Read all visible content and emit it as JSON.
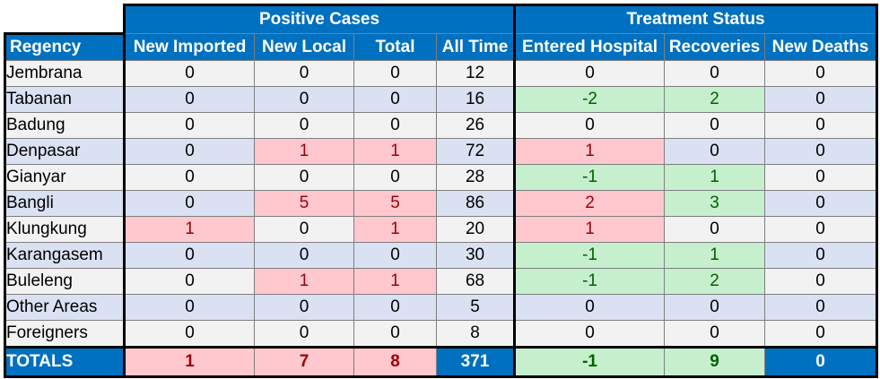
{
  "table": {
    "group_headers": {
      "positive": "Positive Cases",
      "treatment": "Treatment Status"
    },
    "columns": [
      "Regency",
      "New Imported",
      "New Local",
      "Total",
      "All Time",
      "Entered Hospital",
      "Recoveries",
      "New Deaths"
    ],
    "rows": [
      {
        "name": "Jembrana",
        "cells": [
          "0",
          "0",
          "0",
          "12",
          "0",
          "0",
          "0"
        ],
        "styles": [
          "",
          "",
          "",
          "",
          "",
          "",
          ""
        ]
      },
      {
        "name": "Tabanan",
        "cells": [
          "0",
          "0",
          "0",
          "16",
          "-2",
          "2",
          "0"
        ],
        "styles": [
          "",
          "",
          "",
          "",
          "green",
          "green",
          ""
        ]
      },
      {
        "name": "Badung",
        "cells": [
          "0",
          "0",
          "0",
          "26",
          "0",
          "0",
          "0"
        ],
        "styles": [
          "",
          "",
          "",
          "",
          "",
          "",
          ""
        ]
      },
      {
        "name": "Denpasar",
        "cells": [
          "0",
          "1",
          "1",
          "72",
          "1",
          "0",
          "0"
        ],
        "styles": [
          "",
          "red",
          "red",
          "",
          "red",
          "",
          ""
        ]
      },
      {
        "name": "Gianyar",
        "cells": [
          "0",
          "0",
          "0",
          "28",
          "-1",
          "1",
          "0"
        ],
        "styles": [
          "",
          "",
          "",
          "",
          "green",
          "green",
          ""
        ]
      },
      {
        "name": "Bangli",
        "cells": [
          "0",
          "5",
          "5",
          "86",
          "2",
          "3",
          "0"
        ],
        "styles": [
          "",
          "red",
          "red",
          "",
          "red",
          "green",
          ""
        ]
      },
      {
        "name": "Klungkung",
        "cells": [
          "1",
          "0",
          "1",
          "20",
          "1",
          "0",
          "0"
        ],
        "styles": [
          "red",
          "",
          "red",
          "",
          "red",
          "",
          ""
        ]
      },
      {
        "name": "Karangasem",
        "cells": [
          "0",
          "0",
          "0",
          "30",
          "-1",
          "1",
          "0"
        ],
        "styles": [
          "",
          "",
          "",
          "",
          "green",
          "green",
          ""
        ]
      },
      {
        "name": "Buleleng",
        "cells": [
          "0",
          "1",
          "1",
          "68",
          "-1",
          "2",
          "0"
        ],
        "styles": [
          "",
          "red",
          "red",
          "",
          "green",
          "green",
          ""
        ]
      },
      {
        "name": "Other Areas",
        "cells": [
          "0",
          "0",
          "0",
          "5",
          "0",
          "0",
          "0"
        ],
        "styles": [
          "",
          "",
          "",
          "",
          "",
          "",
          ""
        ]
      },
      {
        "name": "Foreigners",
        "cells": [
          "0",
          "0",
          "0",
          "8",
          "0",
          "0",
          "0"
        ],
        "styles": [
          "",
          "",
          "",
          "",
          "",
          "",
          ""
        ]
      }
    ],
    "totals": {
      "name": "TOTALS",
      "cells": [
        "1",
        "7",
        "8",
        "371",
        "-1",
        "9",
        "0"
      ],
      "styles": [
        "red",
        "red",
        "red",
        "",
        "green",
        "green",
        ""
      ]
    },
    "colors": {
      "header_blue": "#0070c0",
      "row_light": "#f2f2f2",
      "row_blue": "#dae1f3",
      "increase_fill": "#ffc7ce",
      "increase_text": "#9c0006",
      "decrease_fill": "#c6efce",
      "decrease_text": "#006100"
    }
  }
}
